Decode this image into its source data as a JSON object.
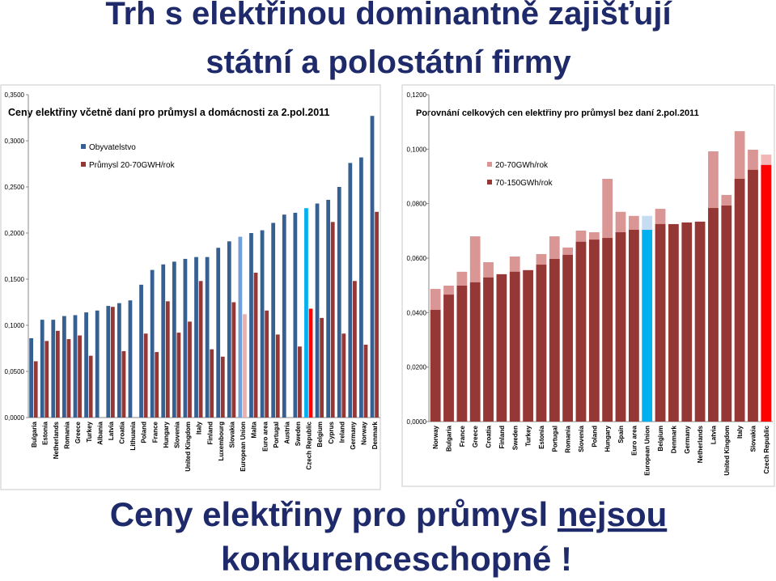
{
  "slide": {
    "title_lines": [
      "Trh s elektřinou dominantně zajišťují",
      "státní a polostátní firmy"
    ],
    "footer": {
      "line1": "Ceny elektřiny pro průmysl ",
      "emphasis": "nejsou",
      "line2": "konkurenceschopné !"
    }
  },
  "chart_data": [
    {
      "type": "bar",
      "barmode": "group",
      "title": "Ceny elektřiny včetně daní pro průmysl  a domácnosti za 2.pol.2011",
      "categories": [
        "Bulgaria",
        "Estonia",
        "Netherlands",
        "Romania",
        "Greece",
        "Turkey",
        "Albania",
        "Latvia",
        "Croatia",
        "Lithuania",
        "Poland",
        "France",
        "Hungary",
        "Slovenia",
        "United Kingdom",
        "Italy",
        "Finland",
        "Luxembourg",
        "Slovakia",
        "European Union",
        "Malta",
        "Euro area",
        "Portugal",
        "Austria",
        "Sweden",
        "Czech Republic",
        "Belgium",
        "Cyprus",
        "Ireland",
        "Germany",
        "Norway",
        "Denmark"
      ],
      "series": [
        {
          "name": "Obyvatelstvo",
          "color": "#366092",
          "highlights": [
            {
              "category": "European Union",
              "color": "#6fa0dc"
            },
            {
              "category": "Czech Republic",
              "color": "#00b0f0"
            }
          ],
          "values": [
            0.086,
            0.106,
            0.106,
            0.11,
            0.111,
            0.114,
            0.116,
            0.121,
            0.124,
            0.127,
            0.144,
            0.16,
            0.166,
            0.169,
            0.172,
            0.174,
            0.174,
            0.184,
            0.191,
            0.196,
            0.2,
            0.203,
            0.211,
            0.22,
            0.222,
            0.227,
            0.232,
            0.236,
            0.25,
            0.276,
            0.282,
            0.327
          ]
        },
        {
          "name": "Průmysl 20-70GWH/rok",
          "color": "#953735",
          "highlights": [
            {
              "category": "European Union",
              "color": "#e6b0b0"
            },
            {
              "category": "Czech Republic",
              "color": "#ff0000"
            }
          ],
          "values": [
            0.061,
            0.083,
            0.094,
            0.085,
            0.089,
            0.067,
            null,
            0.12,
            0.072,
            null,
            0.091,
            0.071,
            0.126,
            0.092,
            0.104,
            0.148,
            0.074,
            0.066,
            0.125,
            0.112,
            0.157,
            0.116,
            0.09,
            null,
            0.077,
            0.118,
            0.108,
            0.212,
            0.091,
            0.148,
            0.079,
            0.223
          ]
        }
      ],
      "ylim": [
        0,
        0.35
      ],
      "yticks": [
        {
          "value": 0,
          "label": "0,0000"
        },
        {
          "value": 0.05,
          "label": "0,0500"
        },
        {
          "value": 0.1,
          "label": "0,1000"
        },
        {
          "value": 0.15,
          "label": "0,1500"
        },
        {
          "value": 0.2,
          "label": "0,2000"
        },
        {
          "value": 0.25,
          "label": "0,2500"
        },
        {
          "value": 0.3,
          "label": "0,3000"
        },
        {
          "value": 0.35,
          "label": "0,3500"
        }
      ],
      "grid": false,
      "legend": "upper left"
    },
    {
      "type": "bar",
      "barmode": "overlay",
      "title": "Porovnání celkových cen elektřiny pro průmysl bez daní 2.pol.2011",
      "categories": [
        "Norway",
        "Bulgaria",
        "France",
        "Greece",
        "Croatia",
        "Finland",
        "Sweden",
        "Turkey",
        "Estonia",
        "Portugal",
        "Romania",
        "Slovenia",
        "Poland",
        "Hungary",
        "Spain",
        "Euro area",
        "European Union",
        "Belgium",
        "Denmark",
        "Germany",
        "Netherlands",
        "Latvia",
        "United Kingdom",
        "Italy",
        "Slovakia",
        "Czech Republic"
      ],
      "series": [
        {
          "name": "20-70GWh/rok",
          "color": "#d99694",
          "highlights": [
            {
              "category": "European Union",
              "color": "#c6dcf2"
            },
            {
              "category": "Czech Republic",
              "color": "#f2b6b6"
            }
          ],
          "values": [
            0.0487,
            0.0499,
            0.055,
            0.068,
            0.0585,
            null,
            0.0606,
            null,
            0.0615,
            0.068,
            0.0639,
            0.0701,
            0.0695,
            0.0891,
            0.077,
            0.0755,
            0.0755,
            0.0781,
            null,
            null,
            null,
            0.0992,
            0.0832,
            0.1066,
            0.0998,
            0.098
          ]
        },
        {
          "name": "70-150GWh/rok",
          "color": "#953735",
          "highlights": [
            {
              "category": "European Union",
              "color": "#00b0f0"
            },
            {
              "category": "Czech Republic",
              "color": "#ff0000"
            }
          ],
          "values": [
            0.041,
            0.0466,
            0.0499,
            0.0511,
            0.0529,
            0.0541,
            0.055,
            0.0556,
            0.0576,
            0.0597,
            0.0612,
            0.066,
            0.0668,
            0.0674,
            0.0695,
            0.0704,
            0.0704,
            0.0725,
            0.0725,
            0.0731,
            0.0734,
            0.0784,
            0.0793,
            0.0891,
            0.0924,
            0.0942
          ]
        }
      ],
      "ylim": [
        0,
        0.12
      ],
      "yticks": [
        {
          "value": 0,
          "label": "0,0000"
        },
        {
          "value": 0.02,
          "label": "0,0200"
        },
        {
          "value": 0.04,
          "label": "0,0400"
        },
        {
          "value": 0.06,
          "label": "0,0600"
        },
        {
          "value": 0.08,
          "label": "0,0800"
        },
        {
          "value": 0.1,
          "label": "0,1000"
        },
        {
          "value": 0.12,
          "label": "0,1200"
        }
      ],
      "grid": false,
      "legend": "upper left"
    }
  ]
}
